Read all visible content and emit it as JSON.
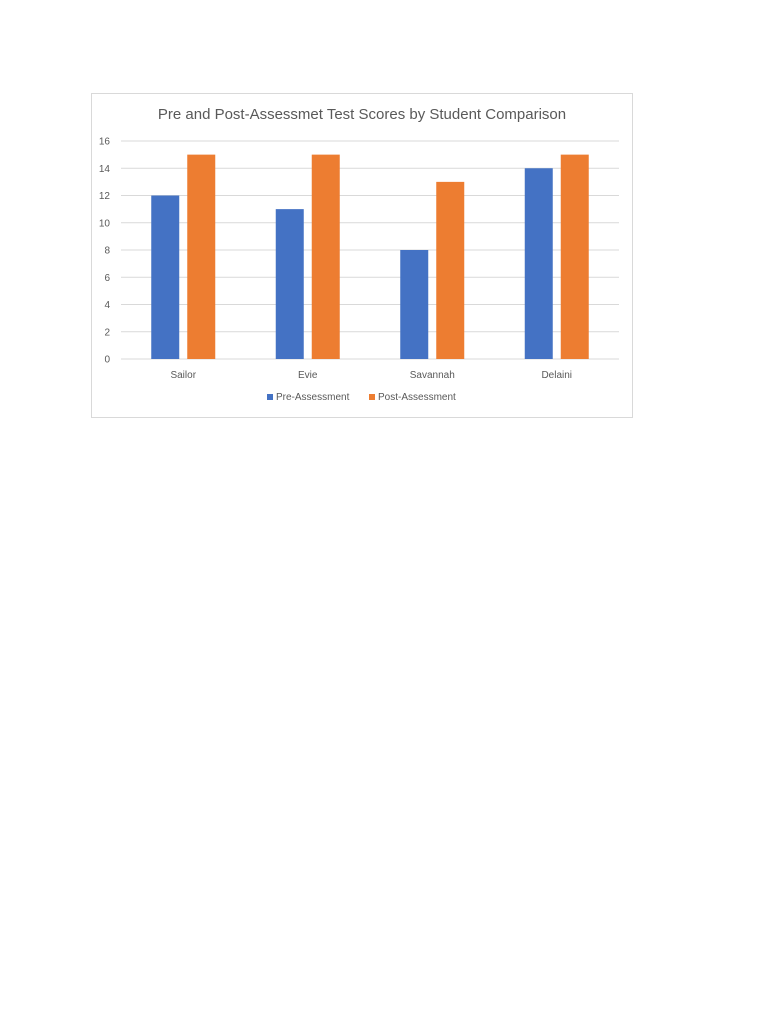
{
  "chart_data": {
    "type": "bar",
    "title": "Pre and Post-Assessmet Test Scores by Student Comparison",
    "categories": [
      "Sailor",
      "Evie",
      "Savannah",
      "Delaini"
    ],
    "series": [
      {
        "name": "Pre-Assessment",
        "values": [
          12,
          11,
          8,
          14
        ],
        "color": "#4472c4"
      },
      {
        "name": "Post-Assessment",
        "values": [
          15,
          15,
          13,
          15
        ],
        "color": "#ed7d31"
      }
    ],
    "ylim": [
      0,
      16
    ],
    "yticks": [
      0,
      2,
      4,
      6,
      8,
      10,
      12,
      14,
      16
    ],
    "grid": true,
    "legend_position": "bottom",
    "gridline_color": "#d9d9d9"
  }
}
